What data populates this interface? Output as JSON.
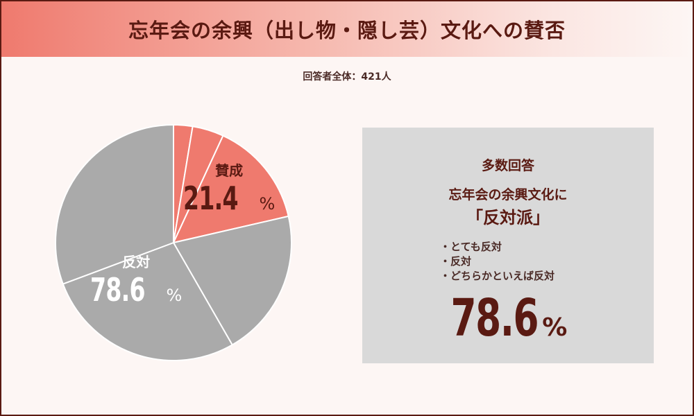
{
  "title": "忘年会の余興（出し物・隠し芸）文化への賛否",
  "respondents": "回答者全体：421人",
  "colors": {
    "favor_total": "#ef7a6e",
    "oppose_total": "#aaaaaa",
    "border": "#5a1a12",
    "background": "#fdf6f4",
    "panel": "#d9d9d9"
  },
  "chart_data": {
    "type": "pie",
    "categories": [
      "賛成",
      "反対"
    ],
    "values": [
      21.4,
      78.6
    ],
    "unit": "%",
    "sub_slices": [
      {
        "group": "賛成",
        "values": [
          2.6,
          4.3,
          14.5
        ]
      },
      {
        "group": "反対",
        "values": [
          20.3,
          27.6,
          30.7
        ]
      }
    ],
    "labels": [
      {
        "name": "賛成",
        "value": "21.4",
        "unit": "%"
      },
      {
        "name": "反対",
        "value": "78.6",
        "unit": "%"
      }
    ]
  },
  "panel": {
    "heading": "多数回答",
    "line1": "忘年会の余興文化に",
    "line2": "「反対派」",
    "items": [
      "とても反対",
      "反対",
      "どちらかといえば反対"
    ],
    "big_value": "78.6",
    "big_unit": "%"
  }
}
